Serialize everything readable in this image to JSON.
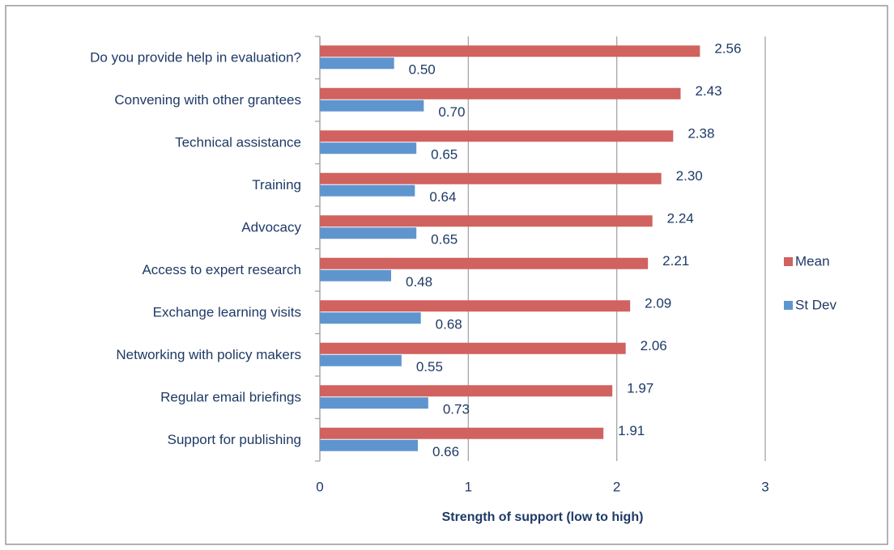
{
  "chart_data": {
    "type": "bar",
    "orientation": "horizontal",
    "categories": [
      "Do you provide help  in evaluation?",
      "Convening with other grantees",
      "Technical assistance",
      "Training",
      "Advocacy",
      "Access to expert research",
      "Exchange learning visits",
      "Networking with policy makers",
      "Regular email briefings",
      "Support for publishing"
    ],
    "series": [
      {
        "name": "Mean",
        "color": "#d0625f",
        "values": [
          2.56,
          2.43,
          2.38,
          2.3,
          2.24,
          2.21,
          2.09,
          2.06,
          1.97,
          1.91
        ],
        "value_labels": [
          "2.56",
          "2.43",
          "2.38",
          "2.30",
          "2.24",
          "2.21",
          "2.09",
          "2.06",
          "1.97",
          "1.91"
        ]
      },
      {
        "name": "St Dev",
        "color": "#5f95cf",
        "values": [
          0.5,
          0.7,
          0.65,
          0.64,
          0.65,
          0.48,
          0.68,
          0.55,
          0.73,
          0.66
        ],
        "value_labels": [
          "0.50",
          "0.70",
          "0.65",
          "0.64",
          "0.65",
          "0.48",
          "0.68",
          "0.55",
          "0.73",
          "0.66"
        ]
      }
    ],
    "xlim": [
      0,
      3
    ],
    "xticks": [
      0,
      1,
      2,
      3
    ],
    "grid": true,
    "legend": "right",
    "x_label": "Strength of support (low to high)"
  }
}
